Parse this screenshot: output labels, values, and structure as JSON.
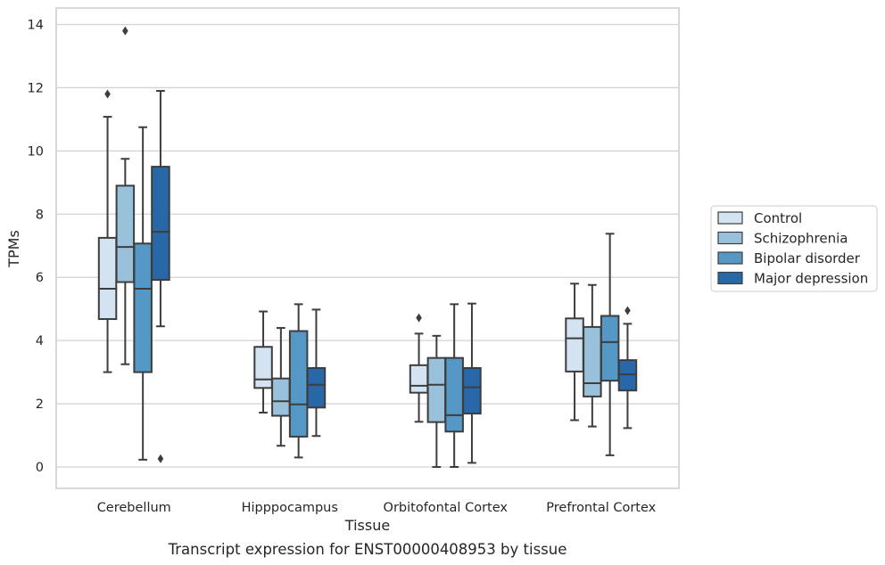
{
  "chart_data": {
    "type": "box",
    "caption": "Transcript expression for ENST00000408953 by tissue",
    "xlabel": "Tissue",
    "ylabel": "TPMs",
    "ylim": [
      -0.65,
      14.5
    ],
    "yticks": [
      0,
      2,
      4,
      6,
      8,
      10,
      12,
      14
    ],
    "grid": "horizontal",
    "legend_position": "right",
    "categories": [
      "Cerebellum",
      "Hipppocampus",
      "Orbitofontal Cortex",
      "Prefrontal Cortex"
    ],
    "series": [
      {
        "name": "Control",
        "color": "#d3e3f2",
        "boxes": [
          {
            "whislo": 3.0,
            "q1": 4.68,
            "med": 5.64,
            "q3": 7.25,
            "whishi": 11.08,
            "fliers": [
              11.8
            ]
          },
          {
            "whislo": 1.72,
            "q1": 2.5,
            "med": 2.77,
            "q3": 3.8,
            "whishi": 4.92,
            "fliers": []
          },
          {
            "whislo": 1.43,
            "q1": 2.35,
            "med": 2.57,
            "q3": 3.22,
            "whishi": 4.22,
            "fliers": [
              4.72
            ]
          },
          {
            "whislo": 1.48,
            "q1": 3.02,
            "med": 4.07,
            "q3": 4.7,
            "whishi": 5.8,
            "fliers": []
          }
        ]
      },
      {
        "name": "Schizophrenia",
        "color": "#9ac1db",
        "boxes": [
          {
            "whislo": 3.25,
            "q1": 5.85,
            "med": 6.96,
            "q3": 8.9,
            "whishi": 9.75,
            "fliers": [
              13.8
            ]
          },
          {
            "whislo": 0.67,
            "q1": 1.62,
            "med": 2.08,
            "q3": 2.8,
            "whishi": 4.4,
            "fliers": []
          },
          {
            "whislo": 0.0,
            "q1": 1.42,
            "med": 2.6,
            "q3": 3.45,
            "whishi": 4.15,
            "fliers": []
          },
          {
            "whislo": 1.28,
            "q1": 2.23,
            "med": 2.65,
            "q3": 4.43,
            "whishi": 5.76,
            "fliers": []
          }
        ]
      },
      {
        "name": "Bipolar disorder",
        "color": "#5598c5",
        "boxes": [
          {
            "whislo": 0.23,
            "q1": 3.0,
            "med": 5.64,
            "q3": 7.07,
            "whishi": 10.75,
            "fliers": []
          },
          {
            "whislo": 0.3,
            "q1": 0.96,
            "med": 1.98,
            "q3": 4.3,
            "whishi": 5.15,
            "fliers": []
          },
          {
            "whislo": 0.0,
            "q1": 1.12,
            "med": 1.64,
            "q3": 3.45,
            "whishi": 5.15,
            "fliers": []
          },
          {
            "whislo": 0.37,
            "q1": 2.73,
            "med": 3.95,
            "q3": 4.78,
            "whishi": 7.38,
            "fliers": []
          }
        ]
      },
      {
        "name": "Major depression",
        "color": "#2968a8",
        "boxes": [
          {
            "whislo": 4.45,
            "q1": 5.92,
            "med": 7.44,
            "q3": 9.5,
            "whishi": 11.9,
            "fliers": [
              0.26
            ]
          },
          {
            "whislo": 0.98,
            "q1": 1.88,
            "med": 2.6,
            "q3": 3.13,
            "whishi": 4.98,
            "fliers": []
          },
          {
            "whislo": 0.13,
            "q1": 1.69,
            "med": 2.52,
            "q3": 3.13,
            "whishi": 5.17,
            "fliers": []
          },
          {
            "whislo": 1.23,
            "q1": 2.42,
            "med": 2.93,
            "q3": 3.38,
            "whishi": 4.53,
            "fliers": [
              4.95
            ]
          }
        ]
      }
    ]
  }
}
